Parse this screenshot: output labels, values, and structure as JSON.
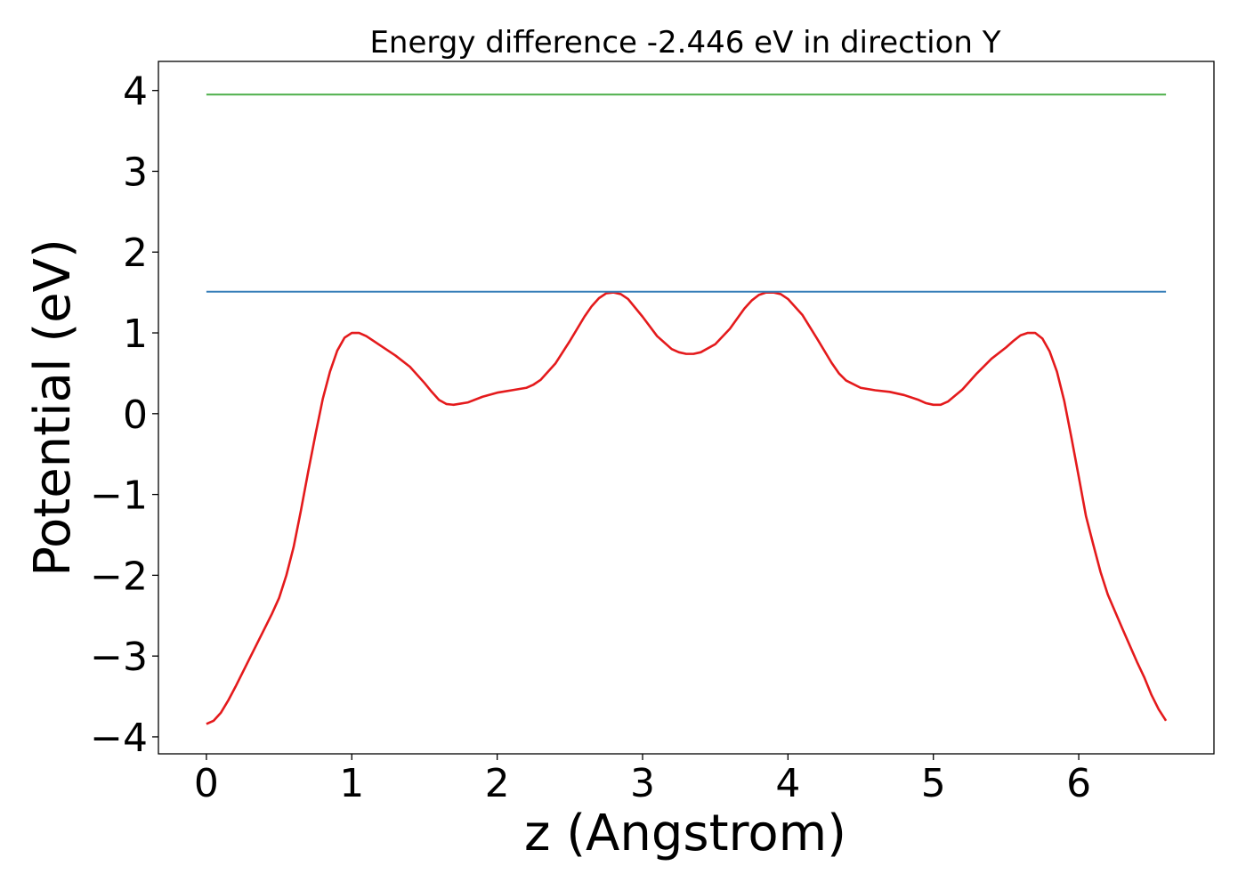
{
  "chart_data": {
    "type": "line",
    "title": "Energy difference -2.446 eV in direction Y",
    "xlabel": "z (Angstrom)",
    "ylabel": "Potential (eV)",
    "xlim": [
      -0.33,
      6.93
    ],
    "ylim": [
      -4.21,
      4.36
    ],
    "xticks": [
      0,
      1,
      2,
      3,
      4,
      5,
      6
    ],
    "xtick_labels": [
      "0",
      "1",
      "2",
      "3",
      "4",
      "5",
      "6"
    ],
    "yticks": [
      -4,
      -3,
      -2,
      -1,
      0,
      1,
      2,
      3,
      4
    ],
    "ytick_labels": [
      "−4",
      "−3",
      "−2",
      "−1",
      "0",
      "1",
      "2",
      "3",
      "4"
    ],
    "grid": false,
    "legend": "none",
    "series": [
      {
        "color": "#e41a1c",
        "x": [
          0,
          0.05,
          0.1,
          0.15,
          0.2,
          0.3,
          0.4,
          0.45,
          0.5,
          0.55,
          0.6,
          0.65,
          0.7,
          0.75,
          0.8,
          0.85,
          0.9,
          0.95,
          1.0,
          1.05,
          1.1,
          1.2,
          1.3,
          1.4,
          1.5,
          1.55,
          1.6,
          1.65,
          1.7,
          1.8,
          1.9,
          2.0,
          2.1,
          2.2,
          2.25,
          2.3,
          2.4,
          2.5,
          2.6,
          2.65,
          2.7,
          2.75,
          2.8,
          2.85,
          2.9,
          3.0,
          3.1,
          3.2,
          3.25,
          3.3,
          3.35,
          3.4,
          3.5,
          3.6,
          3.7,
          3.75,
          3.8,
          3.85,
          3.9,
          3.95,
          4.0,
          4.1,
          4.2,
          4.3,
          4.35,
          4.4,
          4.5,
          4.6,
          4.7,
          4.8,
          4.9,
          4.95,
          5.0,
          5.05,
          5.1,
          5.2,
          5.3,
          5.4,
          5.5,
          5.55,
          5.6,
          5.65,
          5.7,
          5.75,
          5.8,
          5.85,
          5.9,
          5.95,
          6.0,
          6.05,
          6.1,
          6.15,
          6.2,
          6.3,
          6.4,
          6.45,
          6.5,
          6.55,
          6.6
        ],
        "y": [
          -3.84,
          -3.8,
          -3.7,
          -3.55,
          -3.38,
          -3.02,
          -2.66,
          -2.48,
          -2.28,
          -2.0,
          -1.65,
          -1.2,
          -0.72,
          -0.26,
          0.18,
          0.52,
          0.78,
          0.94,
          1.0,
          1.0,
          0.96,
          0.84,
          0.72,
          0.58,
          0.38,
          0.27,
          0.17,
          0.12,
          0.11,
          0.14,
          0.21,
          0.26,
          0.29,
          0.32,
          0.36,
          0.42,
          0.62,
          0.9,
          1.2,
          1.33,
          1.43,
          1.49,
          1.5,
          1.48,
          1.42,
          1.2,
          0.96,
          0.8,
          0.76,
          0.74,
          0.74,
          0.76,
          0.86,
          1.05,
          1.3,
          1.4,
          1.47,
          1.5,
          1.5,
          1.48,
          1.42,
          1.22,
          0.93,
          0.63,
          0.5,
          0.41,
          0.32,
          0.29,
          0.27,
          0.23,
          0.17,
          0.13,
          0.11,
          0.11,
          0.15,
          0.3,
          0.5,
          0.68,
          0.82,
          0.9,
          0.97,
          1.0,
          1.0,
          0.93,
          0.77,
          0.52,
          0.16,
          -0.3,
          -0.78,
          -1.27,
          -1.62,
          -1.96,
          -2.24,
          -2.66,
          -3.07,
          -3.26,
          -3.48,
          -3.66,
          -3.8
        ]
      },
      {
        "color": "#377eb8",
        "x": [
          0,
          6.6
        ],
        "y": [
          1.51,
          1.51
        ]
      },
      {
        "color": "#4daf4a",
        "x": [
          0,
          6.6
        ],
        "y": [
          3.95,
          3.95
        ]
      }
    ]
  }
}
